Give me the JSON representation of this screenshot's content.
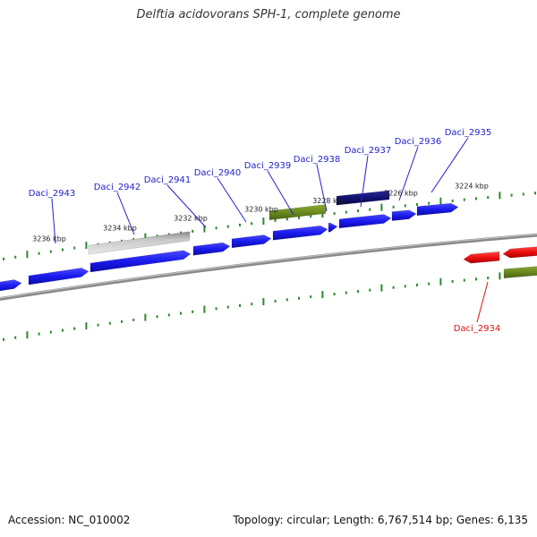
{
  "title": "Delftia acidovorans SPH-1, complete genome",
  "footer": {
    "accession": "Accession: NC_010002",
    "summary": "Topology: circular; Length: 6,767,514 bp; Genes: 6,135"
  },
  "colors": {
    "background": "#ffffff",
    "backbone": "#8a8a8a",
    "tick": "#2a8a2a",
    "gene_blue": "#1a1aee",
    "gene_navy": "#101070",
    "gene_olive": "#6a8a20",
    "gene_gray": "#b8b8b8",
    "gene_red": "#ee1010",
    "label_blue": "#2222cc",
    "label_red": "#dd1111",
    "kbp_text": "#222222"
  },
  "scale_labels": [
    "3236 kbp",
    "3234 kbp",
    "3232 kbp",
    "3230 kbp",
    "3228 kbp",
    "3226 kbp",
    "3224 kbp"
  ],
  "gene_labels": [
    {
      "text": "Daci_2943",
      "color": "blue"
    },
    {
      "text": "Daci_2942",
      "color": "blue"
    },
    {
      "text": "Daci_2941",
      "color": "blue"
    },
    {
      "text": "Daci_2940",
      "color": "blue"
    },
    {
      "text": "Daci_2939",
      "color": "blue"
    },
    {
      "text": "Daci_2938",
      "color": "blue"
    },
    {
      "text": "Daci_2937",
      "color": "blue"
    },
    {
      "text": "Daci_2936",
      "color": "blue"
    },
    {
      "text": "Daci_2935",
      "color": "blue"
    },
    {
      "text": "Daci_2934",
      "color": "red"
    }
  ]
}
